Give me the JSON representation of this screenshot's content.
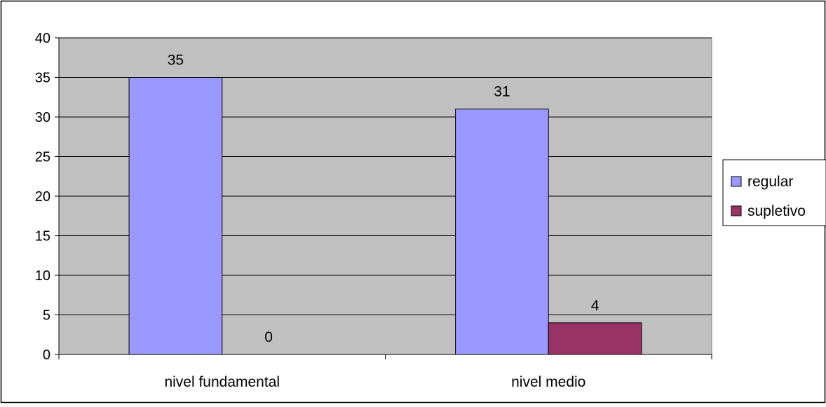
{
  "chart_data": {
    "type": "bar",
    "categories": [
      "nivel fundamental",
      "nivel medio"
    ],
    "series": [
      {
        "name": "regular",
        "values": [
          35,
          31
        ],
        "color": "#9999FF"
      },
      {
        "name": "supletivo",
        "values": [
          0,
          4
        ],
        "color": "#993366"
      }
    ],
    "data_labels": [
      [
        "35",
        "31"
      ],
      [
        "0",
        "4"
      ]
    ],
    "ylim": [
      0,
      40
    ],
    "yticks": [
      0,
      5,
      10,
      15,
      20,
      25,
      30,
      35,
      40
    ],
    "grid": true,
    "legend_position": "right",
    "plot_background": "#C0C0C0"
  }
}
